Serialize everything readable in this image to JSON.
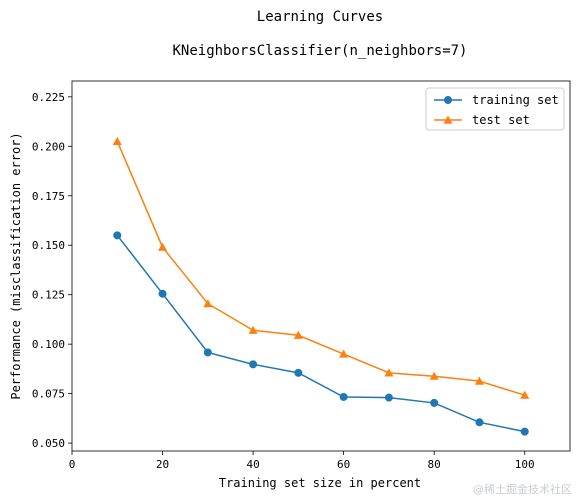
{
  "chart_data": {
    "type": "line",
    "title": "Learning Curves",
    "subtitle": "KNeighborsClassifier(n_neighbors=7)",
    "xlabel": "Training set size in percent",
    "ylabel": "Performance (misclassification error)",
    "xlim": [
      0,
      110
    ],
    "ylim": [
      0.046,
      0.233
    ],
    "x": [
      10,
      20,
      30,
      40,
      50,
      60,
      70,
      80,
      90,
      100
    ],
    "xticks": [
      0,
      20,
      40,
      60,
      80,
      100
    ],
    "yticks": [
      0.05,
      0.075,
      0.1,
      0.125,
      0.15,
      0.175,
      0.2,
      0.225
    ],
    "ytick_labels": [
      "0.050",
      "0.075",
      "0.100",
      "0.125",
      "0.150",
      "0.175",
      "0.200",
      "0.225"
    ],
    "legend_position": "top-right",
    "grid": false,
    "series": [
      {
        "name": "training set",
        "color": "#1f77b4",
        "marker": "circle",
        "values": [
          0.155,
          0.1255,
          0.0958,
          0.0898,
          0.0855,
          0.0733,
          0.073,
          0.0703,
          0.0605,
          0.0558
        ]
      },
      {
        "name": "test set",
        "color": "#ff7f0e",
        "marker": "triangle",
        "values": [
          0.2025,
          0.149,
          0.1205,
          0.107,
          0.1045,
          0.095,
          0.0855,
          0.0838,
          0.0813,
          0.0742
        ]
      }
    ]
  },
  "watermark": "@稀土掘金技术社区"
}
